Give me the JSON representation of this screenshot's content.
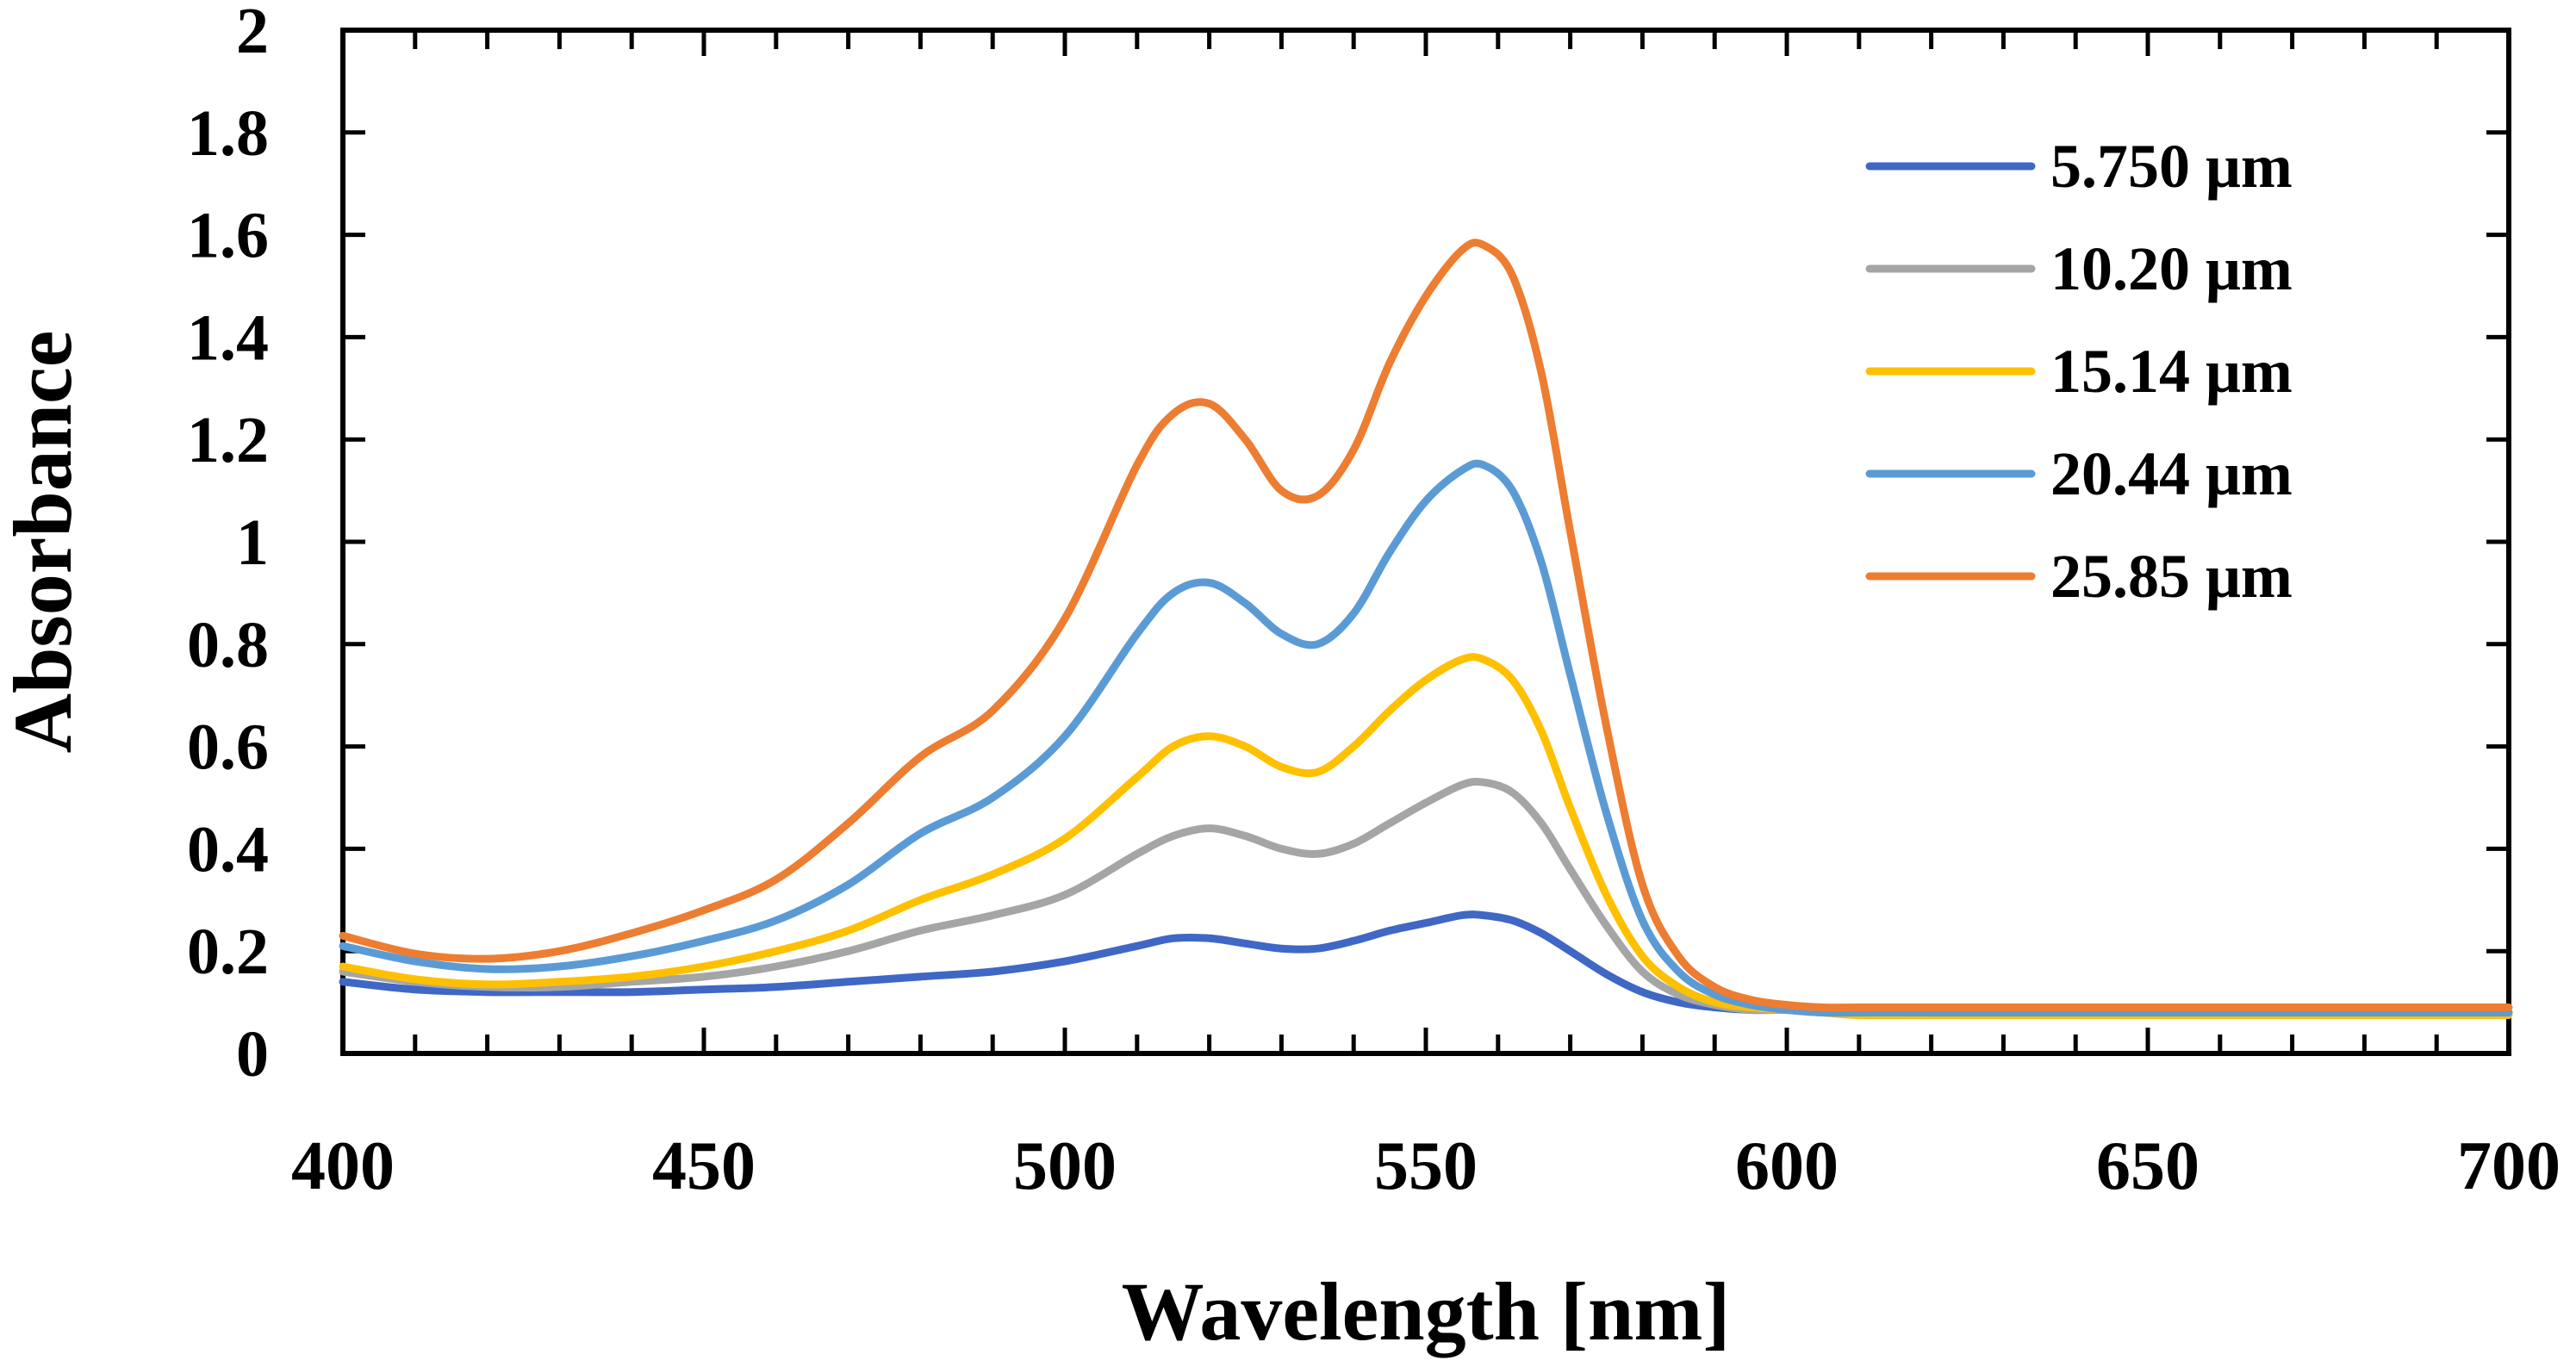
{
  "chart_data": {
    "type": "line",
    "title": "",
    "xlabel": "Wavelength [nm]",
    "ylabel": "Absorbance",
    "xlim": [
      400,
      700
    ],
    "ylim": [
      0,
      2
    ],
    "x_ticks": [
      400,
      450,
      500,
      550,
      600,
      650,
      700
    ],
    "x_tick_labels": [
      "400",
      "450",
      "500",
      "550",
      "600",
      "650",
      "700"
    ],
    "y_ticks": [
      0,
      0.2,
      0.4,
      0.6,
      0.8,
      1.0,
      1.2,
      1.4,
      1.6,
      1.8,
      2.0
    ],
    "y_tick_labels": [
      "0",
      "0.2",
      "0.4",
      "0.6",
      "0.8",
      "1",
      "1.2",
      "1.4",
      "1.6",
      "1.8",
      "2"
    ],
    "grid": false,
    "legend_position": "top-right",
    "x": [
      400,
      410,
      420,
      430,
      440,
      450,
      460,
      470,
      480,
      490,
      500,
      510,
      515,
      520,
      525,
      530,
      535,
      540,
      545,
      550,
      555,
      558,
      562,
      566,
      570,
      575,
      580,
      585,
      590,
      595,
      600,
      605,
      610,
      620,
      650,
      700
    ],
    "series": [
      {
        "name": "5.750 μm",
        "color": "#3f67c5",
        "values": [
          0.14,
          0.125,
          0.12,
          0.12,
          0.12,
          0.125,
          0.13,
          0.14,
          0.15,
          0.16,
          0.18,
          0.21,
          0.225,
          0.225,
          0.215,
          0.205,
          0.205,
          0.22,
          0.24,
          0.255,
          0.27,
          0.27,
          0.26,
          0.235,
          0.2,
          0.155,
          0.12,
          0.1,
          0.09,
          0.085,
          0.085,
          0.08,
          0.08,
          0.08,
          0.08,
          0.08
        ]
      },
      {
        "name": "10.20 μm",
        "color": "#a5a5a5",
        "values": [
          0.16,
          0.14,
          0.13,
          0.13,
          0.14,
          0.15,
          0.17,
          0.2,
          0.24,
          0.27,
          0.31,
          0.39,
          0.425,
          0.44,
          0.425,
          0.4,
          0.39,
          0.41,
          0.45,
          0.49,
          0.525,
          0.53,
          0.51,
          0.45,
          0.36,
          0.25,
          0.16,
          0.115,
          0.095,
          0.085,
          0.085,
          0.08,
          0.08,
          0.08,
          0.08,
          0.08
        ]
      },
      {
        "name": "15.14 μm",
        "color": "#ffc000",
        "values": [
          0.17,
          0.145,
          0.135,
          0.14,
          0.15,
          0.17,
          0.2,
          0.24,
          0.3,
          0.35,
          0.42,
          0.54,
          0.6,
          0.62,
          0.6,
          0.56,
          0.55,
          0.6,
          0.67,
          0.73,
          0.77,
          0.77,
          0.73,
          0.63,
          0.48,
          0.31,
          0.19,
          0.13,
          0.1,
          0.09,
          0.085,
          0.08,
          0.075,
          0.075,
          0.075,
          0.075
        ]
      },
      {
        "name": "20.44 μm",
        "color": "#5b9bd5",
        "values": [
          0.21,
          0.18,
          0.165,
          0.17,
          0.19,
          0.22,
          0.26,
          0.33,
          0.43,
          0.5,
          0.62,
          0.82,
          0.9,
          0.92,
          0.88,
          0.82,
          0.8,
          0.86,
          0.98,
          1.08,
          1.14,
          1.15,
          1.1,
          0.96,
          0.74,
          0.47,
          0.26,
          0.16,
          0.115,
          0.095,
          0.085,
          0.08,
          0.08,
          0.08,
          0.08,
          0.08
        ]
      },
      {
        "name": "25.85 μm",
        "color": "#ed7d31",
        "values": [
          0.23,
          0.195,
          0.185,
          0.2,
          0.235,
          0.28,
          0.34,
          0.45,
          0.58,
          0.67,
          0.85,
          1.15,
          1.25,
          1.27,
          1.2,
          1.1,
          1.09,
          1.18,
          1.35,
          1.48,
          1.57,
          1.58,
          1.52,
          1.33,
          1.02,
          0.64,
          0.33,
          0.19,
          0.13,
          0.105,
          0.095,
          0.09,
          0.09,
          0.09,
          0.09,
          0.09
        ]
      }
    ]
  }
}
